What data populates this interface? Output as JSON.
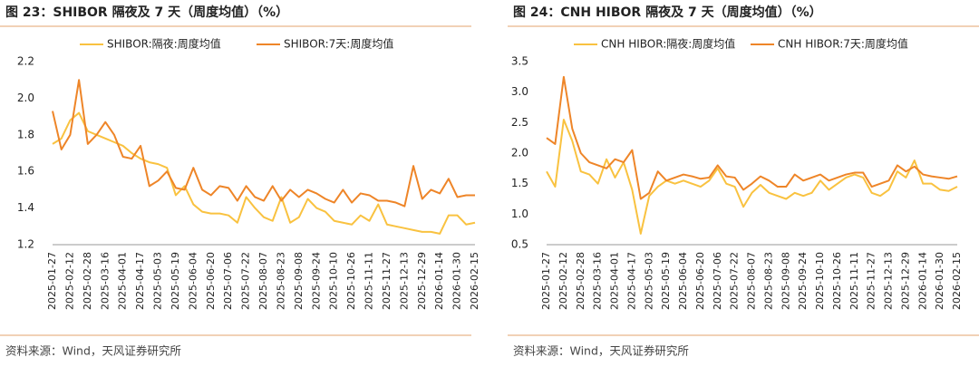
{
  "chart_data": [
    {
      "type": "line",
      "title": "图 23：SHIBOR 隔夜及 7 天（周度均值）（%）",
      "source": "资料来源：Wind，天风证券研究所",
      "categories": [
        "2025-01-27",
        null,
        "2025-02-12",
        null,
        "2025-02-28",
        null,
        "2025-03-16",
        null,
        "2025-04-01",
        null,
        "2025-04-17",
        null,
        "2025-05-03",
        null,
        "2025-05-19",
        null,
        "2025-06-04",
        null,
        "2025-06-20",
        null,
        "2025-07-06",
        null,
        "2025-07-22",
        null,
        "2025-08-07",
        null,
        "2025-08-23",
        null,
        "2025-09-08",
        null,
        "2025-09-24",
        null,
        "2025-10-10",
        null,
        "2025-10-26",
        null,
        "2025-11-11",
        null,
        "2025-11-27",
        null,
        "2025-12-13",
        null,
        "2025-12-29",
        null,
        "2026-01-14",
        null,
        "2026-01-30",
        null,
        "2026-02-15"
      ],
      "series": [
        {
          "name": "SHIBOR:隔夜:周度均值",
          "color": "#f9c240",
          "values": [
            1.75,
            1.78,
            1.88,
            1.92,
            1.82,
            1.8,
            1.78,
            1.76,
            1.74,
            1.7,
            1.67,
            1.65,
            1.64,
            1.62,
            1.47,
            1.52,
            1.42,
            1.38,
            1.37,
            1.37,
            1.36,
            1.32,
            1.46,
            1.4,
            1.35,
            1.33,
            1.46,
            1.32,
            1.35,
            1.45,
            1.4,
            1.38,
            1.33,
            1.32,
            1.31,
            1.36,
            1.33,
            1.42,
            1.31,
            1.3,
            1.29,
            1.28,
            1.27,
            1.27,
            1.26,
            1.36,
            1.36,
            1.31,
            1.32
          ]
        },
        {
          "name": "SHIBOR:7天:周度均值",
          "color": "#ee8528",
          "values": [
            1.93,
            1.72,
            1.8,
            2.1,
            1.75,
            1.8,
            1.87,
            1.8,
            1.68,
            1.67,
            1.74,
            1.52,
            1.55,
            1.6,
            1.51,
            1.5,
            1.62,
            1.5,
            1.47,
            1.52,
            1.51,
            1.44,
            1.52,
            1.46,
            1.44,
            1.52,
            1.44,
            1.5,
            1.46,
            1.5,
            1.48,
            1.45,
            1.43,
            1.5,
            1.43,
            1.48,
            1.47,
            1.44,
            1.44,
            1.43,
            1.41,
            1.63,
            1.45,
            1.5,
            1.48,
            1.56,
            1.46,
            1.47,
            1.47
          ]
        }
      ],
      "ylim": [
        1.2,
        2.2
      ],
      "yticks": [
        1.2,
        1.4,
        1.6,
        1.8,
        {
          "value": 2,
          "label": "2.0"
        },
        2.2
      ],
      "grid": false
    },
    {
      "type": "line",
      "title": "图 24：CNH HIBOR 隔夜及 7 天（周度均值）（%）",
      "source": "资料来源：Wind，天风证券研究所",
      "categories": [
        "2025-01-27",
        null,
        "2025-02-12",
        null,
        "2025-02-28",
        null,
        "2025-03-16",
        null,
        "2025-04-01",
        null,
        "2025-04-17",
        null,
        "2025-05-03",
        null,
        "2025-05-19",
        null,
        "2025-06-04",
        null,
        "2025-06-20",
        null,
        "2025-07-06",
        null,
        "2025-07-22",
        null,
        "2025-08-07",
        null,
        "2025-08-23",
        null,
        "2025-09-08",
        null,
        "2025-09-24",
        null,
        "2025-10-10",
        null,
        "2025-10-26",
        null,
        "2025-11-11",
        null,
        "2025-11-27",
        null,
        "2025-12-13",
        null,
        "2025-12-29",
        null,
        "2026-01-14",
        null,
        "2026-01-30",
        null,
        "2026-02-15"
      ],
      "series": [
        {
          "name": "CNH HIBOR:隔夜:周度均值",
          "color": "#f9c240",
          "values": [
            1.7,
            1.45,
            2.55,
            2.2,
            1.7,
            1.65,
            1.5,
            1.9,
            1.6,
            1.85,
            1.4,
            0.68,
            1.3,
            1.45,
            1.55,
            1.5,
            1.55,
            1.5,
            1.45,
            1.55,
            1.75,
            1.5,
            1.45,
            1.12,
            1.35,
            1.48,
            1.35,
            1.3,
            1.25,
            1.35,
            1.3,
            1.35,
            1.55,
            1.4,
            1.5,
            1.6,
            1.65,
            1.6,
            1.35,
            1.3,
            1.4,
            1.7,
            1.6,
            1.88,
            1.5,
            1.5,
            1.4,
            1.38,
            1.45
          ]
        },
        {
          "name": "CNH HIBOR:7天:周度均值",
          "color": "#ee8528",
          "values": [
            2.25,
            2.15,
            3.25,
            2.4,
            2.0,
            1.85,
            1.8,
            1.75,
            1.9,
            1.85,
            2.05,
            1.25,
            1.35,
            1.7,
            1.55,
            1.6,
            1.65,
            1.62,
            1.58,
            1.6,
            1.8,
            1.62,
            1.6,
            1.4,
            1.5,
            1.62,
            1.55,
            1.45,
            1.45,
            1.65,
            1.55,
            1.6,
            1.65,
            1.55,
            1.6,
            1.65,
            1.68,
            1.68,
            1.45,
            1.5,
            1.55,
            1.8,
            1.7,
            1.78,
            1.65,
            1.62,
            1.6,
            1.58,
            1.62
          ]
        }
      ],
      "ylim": [
        0.5,
        3.5
      ],
      "yticks": [
        0.5,
        {
          "value": 1,
          "label": "1.0"
        },
        1.5,
        {
          "value": 2,
          "label": "2.0"
        },
        2.5,
        {
          "value": 3,
          "label": "3.0"
        },
        3.5
      ],
      "grid": false
    }
  ]
}
